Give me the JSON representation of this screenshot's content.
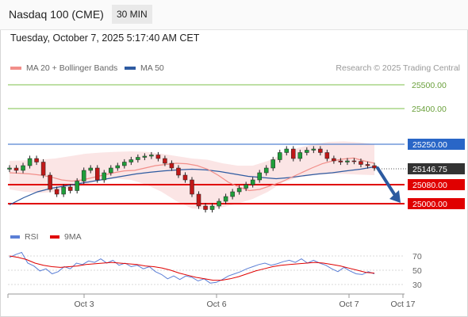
{
  "header": {
    "title": "Nasdaq 100 (CME)",
    "interval": "30 MIN",
    "timestamp": "Tuesday, October 7, 2025 5:17:40 AM CET"
  },
  "legend": {
    "items": [
      {
        "label": "MA 20 + Bollinger Bands",
        "color": "#f28f8a"
      },
      {
        "label": "MA 50",
        "color": "#2e5ba1"
      }
    ],
    "credit": "Research © 2025 Trading Central"
  },
  "chart_data": [
    {
      "type": "line",
      "x_ticks": [
        "Oct 3",
        "Oct 6",
        "Oct 7",
        "Oct 17"
      ],
      "price": {
        "current": 25146.75,
        "current_label": "25146.75",
        "series": [
          {
            "name": "MA 20 + Bollinger Bands",
            "color": "#f28f8a"
          },
          {
            "name": "MA 50",
            "color": "#2e5ba1"
          }
        ],
        "close": [
          25150,
          25140,
          25160,
          25190,
          25175,
          25120,
          25060,
          25040,
          25070,
          25055,
          25095,
          25140,
          25150,
          25100,
          25130,
          25150,
          25160,
          25175,
          25185,
          25195,
          25200,
          25205,
          25190,
          25170,
          25150,
          25120,
          25100,
          25040,
          24990,
          24975,
          24990,
          25010,
          25030,
          25050,
          25065,
          25080,
          25100,
          25130,
          25150,
          25185,
          25215,
          25230,
          25190,
          25215,
          25225,
          25230,
          25215,
          25190,
          25180,
          25175,
          25180,
          25178,
          25165,
          25160,
          25150
        ],
        "ma20": [
          25130,
          25128,
          25125,
          25120,
          25112,
          25100,
          25095,
          25100,
          25110,
          25120,
          25130,
          25138,
          25140,
          25150,
          25160,
          25165,
          25170,
          25168,
          25160,
          25145,
          25120,
          25090,
          25070,
          25055,
          25060,
          25075,
          25090,
          25110,
          25130,
          25150,
          25168,
          25180,
          25188,
          25192,
          25180,
          25170
        ],
        "bb_upper": [
          25180,
          25182,
          25185,
          25190,
          25200,
          25210,
          25215,
          25218,
          25220,
          25218,
          25210,
          25200,
          25190,
          25185,
          25170,
          25160,
          25160,
          25180,
          25210,
          25235,
          25250,
          25260,
          25262,
          25258,
          25250
        ],
        "bb_lower": [
          25060,
          25050,
          25045,
          25050,
          25065,
          25080,
          25100,
          25105,
          25100,
          25080,
          25050,
          25010,
          24980,
          24975,
          24985,
          25000,
          25020,
          25050,
          25090,
          25110,
          25120,
          25125,
          25125,
          25122,
          25120
        ],
        "ma50": [
          24995,
          25025,
          25050,
          25065,
          25075,
          25085,
          25095,
          25105,
          25115,
          25125,
          25132,
          25138,
          25142,
          25145,
          25142,
          25135,
          25125,
          25115,
          25110,
          25105,
          25110,
          25118,
          25125,
          25130,
          25138,
          25145,
          25155
        ],
        "levels": [
          {
            "value": 25500,
            "label": "25500.00",
            "color": "#7cc04b"
          },
          {
            "value": 25400,
            "label": "25400.00",
            "color": "#7cc04b"
          },
          {
            "value": 25250,
            "label": "25250.00",
            "color": "#2966c7"
          },
          {
            "value": 25080,
            "label": "25080.00",
            "color": "#e00000"
          },
          {
            "value": 25000,
            "label": "25000.00",
            "color": "#e00000"
          }
        ],
        "forecast": {
          "from": 25146.75,
          "to": 25000,
          "direction": "down"
        }
      },
      "rsi": {
        "series": [
          {
            "name": "RSI",
            "color": "#5b7fd6"
          },
          {
            "name": "9MA",
            "color": "#e00000"
          }
        ],
        "levels": [
          70,
          50,
          30
        ],
        "tick_labels": [
          "70",
          "50",
          "30"
        ],
        "rsi": [
          68,
          72,
          75,
          60,
          56,
          49,
          52,
          45,
          48,
          55,
          52,
          60,
          58,
          63,
          61,
          66,
          60,
          64,
          57,
          60,
          55,
          57,
          52,
          55,
          48,
          44,
          38,
          42,
          37,
          42,
          40,
          35,
          38,
          32,
          33,
          37,
          42,
          45,
          48,
          52,
          55,
          58,
          60,
          57,
          59,
          62,
          64,
          61,
          66,
          60,
          64,
          60,
          57,
          52,
          48,
          54,
          49,
          45,
          44,
          48,
          45
        ],
        "ma9": [
          70,
          68,
          65,
          60,
          57,
          55,
          54,
          55,
          56,
          58,
          59,
          60,
          61,
          60,
          59,
          58,
          56,
          55,
          53,
          50,
          46,
          43,
          40,
          38,
          36,
          36,
          38,
          41,
          45,
          49,
          52,
          55,
          57,
          58,
          59,
          60,
          61,
          60,
          58,
          56,
          53,
          50,
          47,
          46
        ]
      }
    }
  ]
}
